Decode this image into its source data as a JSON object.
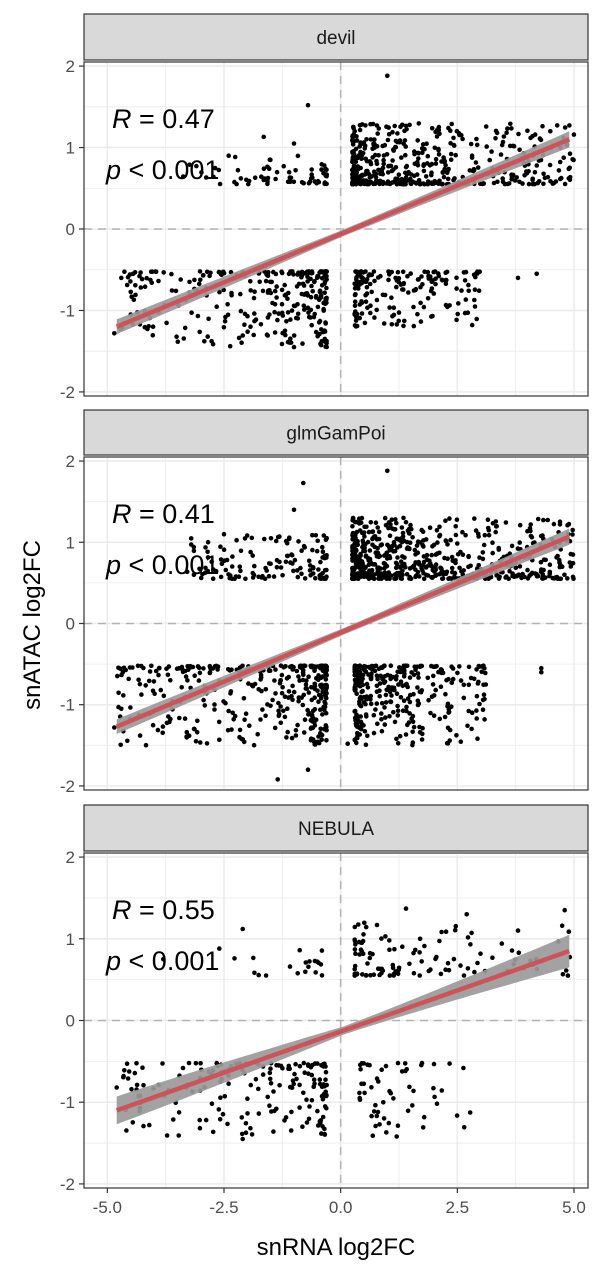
{
  "chart_data": {
    "type": "scatter",
    "xlabel": "snRNA log2FC",
    "ylabel": "snATAC log2FC",
    "xlim": [
      -5.5,
      5.3
    ],
    "ylim": [
      -2.05,
      2.05
    ],
    "x_ticks": [
      -5.0,
      -2.5,
      0.0,
      2.5,
      5.0
    ],
    "x_tick_labels": [
      "-5.0",
      "-2.5",
      "0.0",
      "2.5",
      "5.0"
    ],
    "y_ticks": [
      -2,
      -1,
      0,
      1,
      2
    ],
    "y_tick_labels": [
      "-2",
      "-1",
      "0",
      "1",
      "2"
    ],
    "grid": true,
    "reference_lines": {
      "x": 0,
      "y": 0,
      "style": "dashed"
    },
    "colors": {
      "points": "#000000",
      "fit_line": "#cd5358",
      "confidence_band": "#9a9a9a",
      "strip": "#d9d9d9",
      "panel_border": "#333333",
      "grid": "#ebebeb"
    },
    "panels": [
      {
        "name": "devil",
        "r_label": "R = 0.47",
        "r_value": "0.47",
        "p_label": "p < 0.001",
        "p_value": "< 0.001",
        "fit": {
          "x": [
            -4.8,
            4.9
          ],
          "y": [
            -1.2,
            1.1
          ]
        },
        "band_halfwidth": [
          0.09,
          0.04,
          0.1
        ],
        "density": {
          "q1_x": [
            0.25,
            5.0
          ],
          "q1_y": [
            0.55,
            1.3
          ],
          "q1_n": 480,
          "q2_x": [
            -3.4,
            -0.3
          ],
          "q2_y": [
            0.55,
            0.9
          ],
          "q2_n": 65,
          "q3_x": [
            -4.8,
            -0.3
          ],
          "q3_y": [
            -1.45,
            -0.52
          ],
          "q3_n": 300,
          "q4_x": [
            0.3,
            3.0
          ],
          "q4_y": [
            -1.2,
            -0.52
          ],
          "q4_n": 170
        },
        "outliers": [
          [
            -0.7,
            1.52
          ],
          [
            1.0,
            1.88
          ],
          [
            -1.65,
            1.13
          ],
          [
            -1.0,
            1.05
          ],
          [
            -2.4,
            0.9
          ],
          [
            3.8,
            -0.6
          ],
          [
            4.2,
            -0.55
          ],
          [
            -4.7,
            -0.6
          ],
          [
            -4.85,
            -1.28
          ],
          [
            -4.5,
            -1.05
          ],
          [
            -1.0,
            -1.45
          ]
        ]
      },
      {
        "name": "glmGamPoi",
        "r_label": "R = 0.41",
        "r_value": "0.41",
        "p_label": "p < 0.001",
        "p_value": "< 0.001",
        "fit": {
          "x": [
            -4.8,
            4.9
          ],
          "y": [
            -1.27,
            1.07
          ]
        },
        "band_halfwidth": [
          0.09,
          0.04,
          0.1
        ],
        "density": {
          "q1_x": [
            0.25,
            5.0
          ],
          "q1_y": [
            0.55,
            1.3
          ],
          "q1_n": 620,
          "q2_x": [
            -3.4,
            -0.3
          ],
          "q2_y": [
            0.55,
            1.1
          ],
          "q2_n": 130,
          "q3_x": [
            -4.8,
            -0.3
          ],
          "q3_y": [
            -1.5,
            -0.52
          ],
          "q3_n": 360,
          "q4_x": [
            0.3,
            3.2
          ],
          "q4_y": [
            -1.5,
            -0.52
          ],
          "q4_n": 330
        },
        "outliers": [
          [
            -0.8,
            1.73
          ],
          [
            1.0,
            1.88
          ],
          [
            -1.0,
            1.4
          ],
          [
            -2.5,
            1.1
          ],
          [
            4.3,
            -0.55
          ],
          [
            4.3,
            -0.6
          ],
          [
            -1.35,
            -1.92
          ],
          [
            -0.7,
            -1.8
          ],
          [
            -3.1,
            -1.45
          ],
          [
            -4.85,
            -1.28
          ],
          [
            -4.7,
            -1.05
          ],
          [
            0.15,
            -1.48
          ]
        ]
      },
      {
        "name": "NEBULA",
        "r_label": "R = 0.55",
        "r_value": "0.55",
        "p_label": "p < 0.001",
        "p_value": "< 0.001",
        "fit": {
          "x": [
            -4.8,
            4.9
          ],
          "y": [
            -1.1,
            0.85
          ]
        },
        "band_halfwidth": [
          0.17,
          0.05,
          0.2
        ],
        "density": {
          "q1_x": [
            0.3,
            5.0
          ],
          "q1_y": [
            0.55,
            1.2
          ],
          "q1_n": 110,
          "q2_x": [
            -2.4,
            -0.4
          ],
          "q2_y": [
            0.55,
            0.9
          ],
          "q2_n": 18,
          "q3_x": [
            -4.8,
            -0.3
          ],
          "q3_y": [
            -1.45,
            -0.52
          ],
          "q3_n": 180,
          "q4_x": [
            0.4,
            2.8
          ],
          "q4_y": [
            -1.42,
            -0.52
          ],
          "q4_n": 55
        },
        "outliers": [
          [
            1.4,
            1.37
          ],
          [
            2.7,
            1.3
          ],
          [
            3.8,
            1.1
          ],
          [
            4.8,
            1.35
          ],
          [
            -2.1,
            1.12
          ],
          [
            -3.8,
            0.75
          ],
          [
            -2.6,
            0.88
          ],
          [
            -0.5,
            0.72
          ],
          [
            -4.8,
            -0.82
          ],
          [
            -4.3,
            -1.07
          ],
          [
            -4.1,
            -1.28
          ],
          [
            -2.1,
            -1.45
          ],
          [
            1.2,
            -1.42
          ],
          [
            0.8,
            -1.12
          ]
        ]
      }
    ]
  }
}
